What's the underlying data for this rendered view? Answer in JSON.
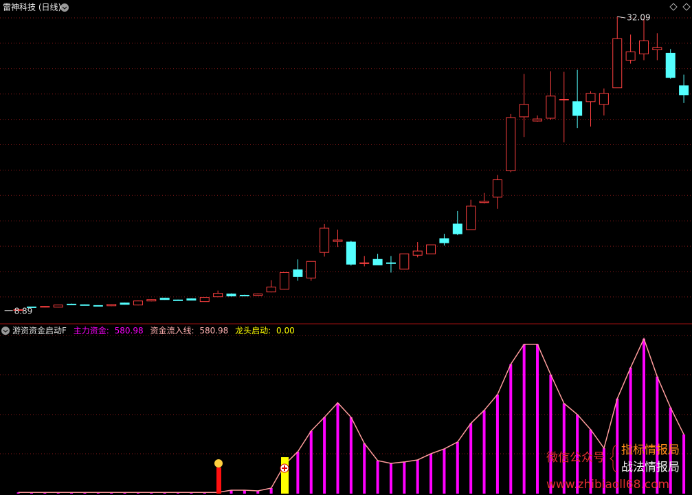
{
  "chart_data": [
    {
      "type": "candlestick",
      "title": "雷神科技 (日线)",
      "up_color": "#ff4040",
      "down_color": "#54ffff",
      "ylim": [
        7.9,
        33.4
      ],
      "open": [
        8.94,
        9.18,
        9.16,
        9.16,
        9.4,
        9.35,
        9.29,
        9.27,
        9.49,
        9.33,
        9.65,
        9.87,
        9.73,
        9.82,
        9.6,
        9.98,
        10.2,
        10.1,
        10.09,
        10.36,
        10.58,
        12.11,
        11.46,
        13.48,
        14.35,
        14.3,
        12.6,
        12.93,
        12.66,
        12.17,
        13.26,
        13.37,
        14.57,
        15.72,
        15.28,
        17.41,
        17.84,
        19.92,
        24.18,
        23.85,
        24.07,
        25.52,
        25.38,
        25.38,
        25.16,
        26.47,
        28.65,
        29.15,
        29.47,
        29.2,
        26.63
      ],
      "high": [
        8.98,
        9.2,
        9.24,
        9.35,
        9.44,
        9.38,
        9.31,
        9.4,
        9.52,
        9.68,
        9.78,
        9.9,
        9.76,
        9.85,
        9.96,
        10.47,
        10.25,
        10.14,
        10.24,
        11.29,
        11.89,
        12.93,
        12.77,
        15.72,
        15.28,
        14.4,
        13.2,
        13.37,
        13.2,
        13.37,
        14.3,
        14.08,
        14.95,
        16.75,
        17.63,
        18.17,
        19.59,
        24.4,
        27.56,
        24.29,
        27.78,
        27.73,
        27.89,
        26.2,
        26.42,
        32.09,
        30.67,
        31.9,
        30.78,
        29.53,
        27.51
      ],
      "low": [
        8.89,
        9.14,
        9.14,
        9.14,
        9.36,
        9.3,
        9.25,
        9.24,
        9.36,
        9.3,
        9.62,
        9.74,
        9.68,
        9.69,
        9.58,
        9.95,
        10.0,
        10.05,
        10.06,
        10.33,
        10.55,
        11.24,
        11.24,
        13.15,
        13.91,
        12.44,
        12.38,
        12.49,
        11.89,
        12.17,
        13.09,
        13.37,
        14.02,
        14.84,
        15.28,
        17.35,
        16.92,
        19.81,
        22.59,
        23.8,
        23.96,
        22.16,
        23.3,
        23.41,
        24.29,
        26.47,
        28.38,
        28.65,
        28.65,
        27.18,
        25.27
      ],
      "close": [
        8.96,
        9.16,
        9.22,
        9.33,
        9.38,
        9.33,
        9.27,
        9.38,
        9.38,
        9.65,
        9.76,
        9.76,
        9.71,
        9.71,
        9.93,
        10.25,
        10.04,
        10.07,
        10.2,
        10.75,
        11.89,
        11.57,
        12.77,
        15.39,
        14.46,
        12.55,
        12.66,
        12.49,
        12.64,
        13.37,
        13.59,
        14.08,
        14.24,
        14.95,
        17.13,
        17.52,
        19.21,
        24.12,
        25.16,
        24.01,
        25.82,
        25.56,
        24.29,
        26.03,
        26.03,
        30.35,
        29.31,
        30.18,
        29.64,
        27.29,
        25.92
      ]
    },
    {
      "type": "bar",
      "title": "游资资金启动F",
      "ylim": [
        0,
        1600
      ],
      "series": [
        {
          "name": "主力资金:",
          "color": "#ff00ff",
          "values": [
            12,
            12,
            12,
            12,
            12,
            12,
            12,
            12,
            12,
            12,
            12,
            12,
            12,
            12,
            12,
            12,
            34,
            34,
            27,
            54,
            284,
            412,
            615,
            750,
            892,
            750,
            493,
            324,
            297,
            311,
            331,
            392,
            439,
            507,
            690,
            818,
            973,
            1271,
            1467,
            1467,
            1169,
            886,
            777,
            629,
            446,
            933,
            1237,
            1521,
            1149,
            845,
            580.98
          ]
        },
        {
          "name": "资金流入线:",
          "color": "#ff9c9c",
          "values": [
            12,
            12,
            12,
            12,
            12,
            12,
            12,
            12,
            12,
            12,
            12,
            12,
            12,
            12,
            12,
            12,
            34,
            34,
            27,
            54,
            284,
            412,
            615,
            750,
            892,
            750,
            493,
            324,
            297,
            311,
            331,
            392,
            439,
            507,
            690,
            818,
            973,
            1271,
            1467,
            1467,
            1169,
            886,
            777,
            629,
            446,
            933,
            1237,
            1521,
            1149,
            845,
            580.98
          ]
        },
        {
          "name": "龙头启动:",
          "color": "#ffff00",
          "value": 0,
          "value_label": "0.00"
        }
      ]
    }
  ],
  "watermark": {
    "line1": "微信公众号",
    "line2": "指标情报局",
    "line3": "战法情报局",
    "url": "www.zhibiaoll68.com"
  }
}
